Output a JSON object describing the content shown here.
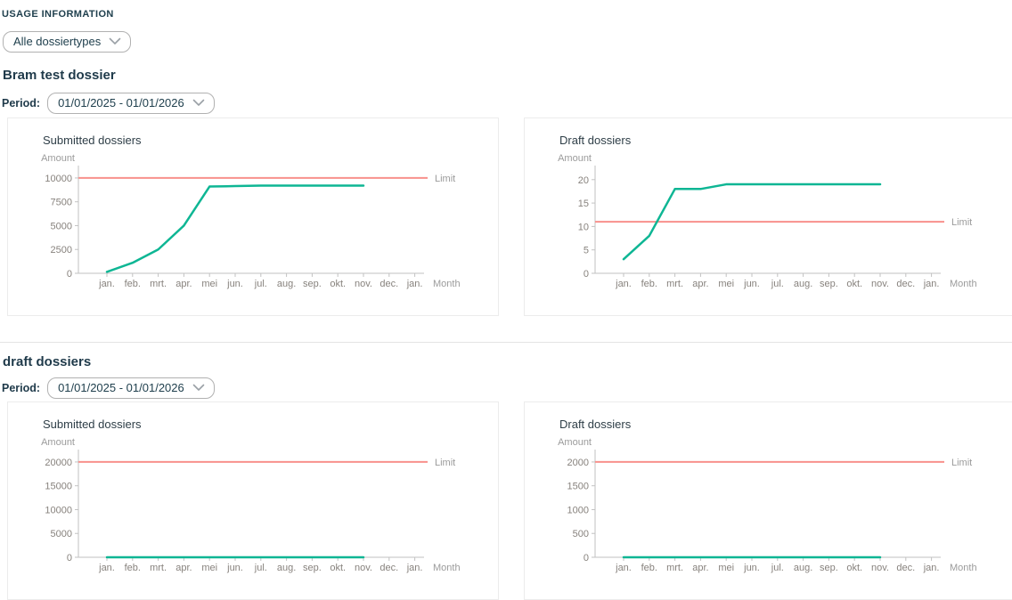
{
  "page": {
    "title": "USAGE INFORMATION",
    "filter": {
      "value": "Alle dossiertypes"
    }
  },
  "colors": {
    "heading": "#1f3a4a",
    "series_teal": "#0eb694",
    "limit_salmon": "#f8918c",
    "muted_label": "#9b9b9b",
    "tick_label": "#87827d",
    "axis": "#c2c2c2",
    "chevron": "#9aa0a6"
  },
  "sections": [
    {
      "heading": "Bram test dossier",
      "period_label": "Period:",
      "period_value": "01/01/2025 - 01/01/2026"
    },
    {
      "heading": "draft dossiers",
      "period_label": "Period:",
      "period_value": "01/01/2025 - 01/01/2026"
    }
  ],
  "chart_data": [
    {
      "type": "line",
      "title": "Submitted dossiers",
      "ylabel": "Amount",
      "xlabel": "Month",
      "grid": false,
      "legend_position": "none",
      "categories": [
        "jan.",
        "feb.",
        "mrt.",
        "apr.",
        "mei",
        "jun.",
        "jul.",
        "aug.",
        "sep.",
        "okt.",
        "nov.",
        "dec.",
        "jan."
      ],
      "yticks": [
        0,
        2500,
        5000,
        7500,
        10000
      ],
      "ylim": [
        0,
        11300
      ],
      "series": [
        {
          "name": "Submitted dossiers",
          "values": [
            150,
            1100,
            2500,
            5000,
            9100,
            9150,
            9200,
            9200,
            9200,
            9200,
            9200,
            null,
            null
          ]
        }
      ],
      "limit": {
        "label": "Limit",
        "value": 10000
      }
    },
    {
      "type": "line",
      "title": "Draft dossiers",
      "ylabel": "Amount",
      "xlabel": "Month",
      "grid": false,
      "legend_position": "none",
      "categories": [
        "jan.",
        "feb.",
        "mrt.",
        "apr.",
        "mei",
        "jun.",
        "jul.",
        "aug.",
        "sep.",
        "okt.",
        "nov.",
        "dec.",
        "jan."
      ],
      "yticks": [
        0,
        5,
        10,
        15,
        20
      ],
      "ylim": [
        0,
        23
      ],
      "series": [
        {
          "name": "Draft dossiers",
          "values": [
            3,
            8,
            18,
            18,
            19,
            19,
            19,
            19,
            19,
            19,
            19,
            null,
            null
          ]
        }
      ],
      "limit": {
        "label": "Limit",
        "value": 11
      }
    },
    {
      "type": "line",
      "title": "Submitted dossiers",
      "ylabel": "Amount",
      "xlabel": "Month",
      "grid": false,
      "legend_position": "none",
      "categories": [
        "jan.",
        "feb.",
        "mrt.",
        "apr.",
        "mei",
        "jun.",
        "jul.",
        "aug.",
        "sep.",
        "okt.",
        "nov.",
        "dec.",
        "jan."
      ],
      "yticks": [
        0,
        5000,
        10000,
        15000,
        20000
      ],
      "ylim": [
        0,
        22600
      ],
      "series": [
        {
          "name": "Submitted dossiers",
          "values": [
            0,
            0,
            0,
            0,
            0,
            0,
            0,
            0,
            0,
            0,
            0,
            null,
            null
          ]
        }
      ],
      "limit": {
        "label": "Limit",
        "value": 20000
      }
    },
    {
      "type": "line",
      "title": "Draft dossiers",
      "ylabel": "Amount",
      "xlabel": "Month",
      "grid": false,
      "legend_position": "none",
      "categories": [
        "jan.",
        "feb.",
        "mrt.",
        "apr.",
        "mei",
        "jun.",
        "jul.",
        "aug.",
        "sep.",
        "okt.",
        "nov.",
        "dec.",
        "jan."
      ],
      "yticks": [
        0,
        500,
        1000,
        1500,
        2000
      ],
      "ylim": [
        0,
        2260
      ],
      "series": [
        {
          "name": "Draft dossiers",
          "values": [
            0,
            0,
            0,
            0,
            0,
            0,
            0,
            0,
            0,
            0,
            0,
            null,
            null
          ]
        }
      ],
      "limit": {
        "label": "Limit",
        "value": 2000
      }
    }
  ]
}
